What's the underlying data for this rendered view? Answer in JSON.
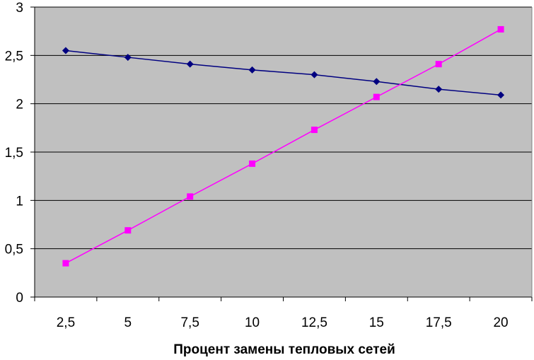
{
  "chart_data": {
    "type": "line",
    "xlabel": "Процент замены тепловых сетей",
    "ylabel": "",
    "categories": [
      "2,5",
      "5",
      "7,5",
      "10",
      "12,5",
      "15",
      "17,5",
      "20"
    ],
    "yticks": [
      "0",
      "0,5",
      "1",
      "1,5",
      "2",
      "2,5",
      "3"
    ],
    "ylim": [
      0,
      3
    ],
    "grid": true,
    "plot_background": "#c0c0c0",
    "series": [
      {
        "color": "#000080",
        "marker": "diamond",
        "values": [
          2.55,
          2.48,
          2.41,
          2.35,
          2.3,
          2.23,
          2.15,
          2.09
        ]
      },
      {
        "color": "#ff00ff",
        "marker": "square",
        "values": [
          0.35,
          0.69,
          1.04,
          1.38,
          1.73,
          2.07,
          2.41,
          2.77
        ]
      }
    ]
  }
}
